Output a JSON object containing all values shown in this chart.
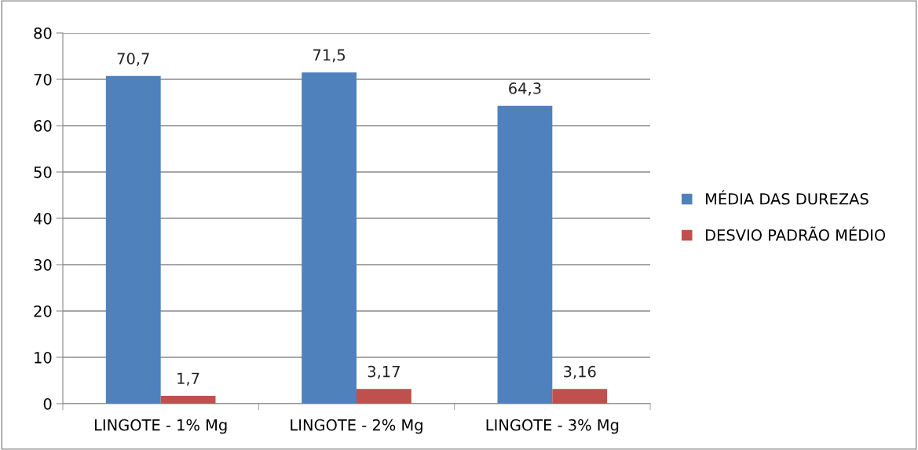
{
  "chart_data": {
    "type": "bar",
    "categories": [
      "LINGOTE - 1% Mg",
      "LINGOTE - 2% Mg",
      "LINGOTE - 3% Mg"
    ],
    "series": [
      {
        "name": "MÉDIA DAS DUREZAS",
        "color": "#4f81bd",
        "values": [
          70.7,
          71.5,
          64.3
        ],
        "value_labels": [
          "70,7",
          "71,5",
          "64,3"
        ]
      },
      {
        "name": "DESVIO PADRÃO MÉDIO",
        "color": "#c0504d",
        "values": [
          1.7,
          3.17,
          3.16
        ],
        "value_labels": [
          "1,7",
          "3,17",
          "3,16"
        ]
      }
    ],
    "ylim": [
      0,
      80
    ],
    "yticks": [
      0,
      10,
      20,
      30,
      40,
      50,
      60,
      70,
      80
    ],
    "grid": "y",
    "legend": "right"
  }
}
